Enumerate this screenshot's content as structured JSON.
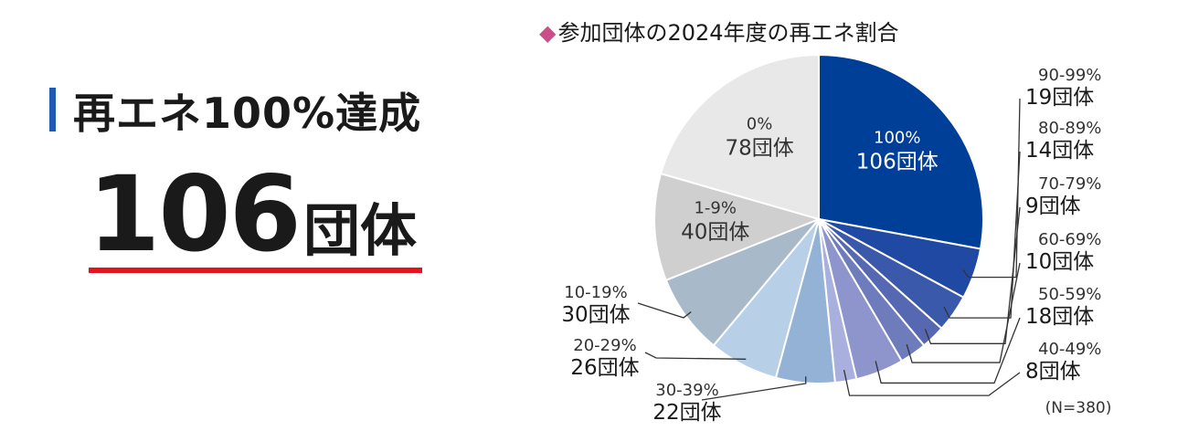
{
  "headline": {
    "label": "再エネ100%達成",
    "value": "106",
    "unit": "団体"
  },
  "chart_title": "参加団体の2024年度の再エネ割合",
  "title_marker": "◆",
  "colors": {
    "headline_bar": "#1d5bb5",
    "underline": "#e2141d",
    "title_marker": "#c94f86",
    "leader": "#333333"
  },
  "chart_data": {
    "type": "pie",
    "title": "参加団体の2024年度の再エネ割合",
    "start": "12 o'clock",
    "direction": "clockwise",
    "note": "(N=380)",
    "slices": [
      {
        "category": "100%",
        "value": 106,
        "label": "106団体",
        "color": "#003f98"
      },
      {
        "category": "90-99%",
        "value": 19,
        "label": "19団体",
        "color": "#2049a4"
      },
      {
        "category": "80-89%",
        "value": 14,
        "label": "14団体",
        "color": "#3a59ab"
      },
      {
        "category": "70-79%",
        "value": 9,
        "label": "9団体",
        "color": "#5668b2"
      },
      {
        "category": "60-69%",
        "value": 10,
        "label": "10団体",
        "color": "#6f7cbb"
      },
      {
        "category": "50-59%",
        "value": 18,
        "label": "18団体",
        "color": "#8e95cc"
      },
      {
        "category": "40-49%",
        "value": 8,
        "label": "8団体",
        "color": "#a9b0de"
      },
      {
        "category": "30-39%",
        "value": 22,
        "label": "22団体",
        "color": "#94b2d6"
      },
      {
        "category": "20-29%",
        "value": 26,
        "label": "26団体",
        "color": "#b8cfe8"
      },
      {
        "category": "10-19%",
        "value": 30,
        "label": "30団体",
        "color": "#a8b9c9"
      },
      {
        "category": "1-9%",
        "value": 40,
        "label": "40団体",
        "color": "#cfcfcf"
      },
      {
        "category": "0%",
        "value": 78,
        "label": "78団体",
        "color": "#e8e8e8"
      }
    ]
  }
}
